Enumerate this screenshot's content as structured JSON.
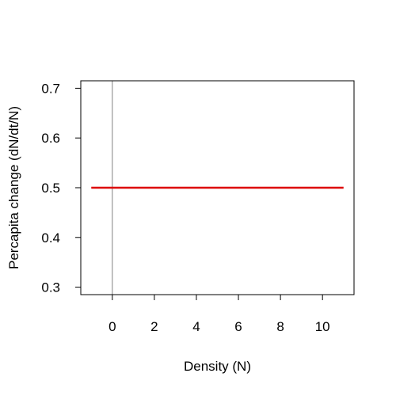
{
  "chart_data": {
    "type": "line",
    "title": "",
    "xlabel": "Density (N)",
    "ylabel": "Percapita change (dN/dt/N)",
    "xlim": [
      -1.5,
      11.5
    ],
    "ylim": [
      0.285,
      0.715
    ],
    "x_ticks": [
      0,
      2,
      4,
      6,
      8,
      10
    ],
    "x_tick_labels": [
      "0",
      "2",
      "4",
      "6",
      "8",
      "10"
    ],
    "y_ticks": [
      0.3,
      0.4,
      0.5,
      0.6,
      0.7
    ],
    "y_tick_labels": [
      "0.3",
      "0.4",
      "0.5",
      "0.6",
      "0.7"
    ],
    "grid": false,
    "legend": "none",
    "reference_lines": [
      {
        "orientation": "vertical",
        "x": 0,
        "color": "#808080"
      }
    ],
    "series": [
      {
        "color": "#dd0000",
        "x": [
          -1,
          11
        ],
        "y": [
          0.5,
          0.5
        ]
      }
    ]
  }
}
